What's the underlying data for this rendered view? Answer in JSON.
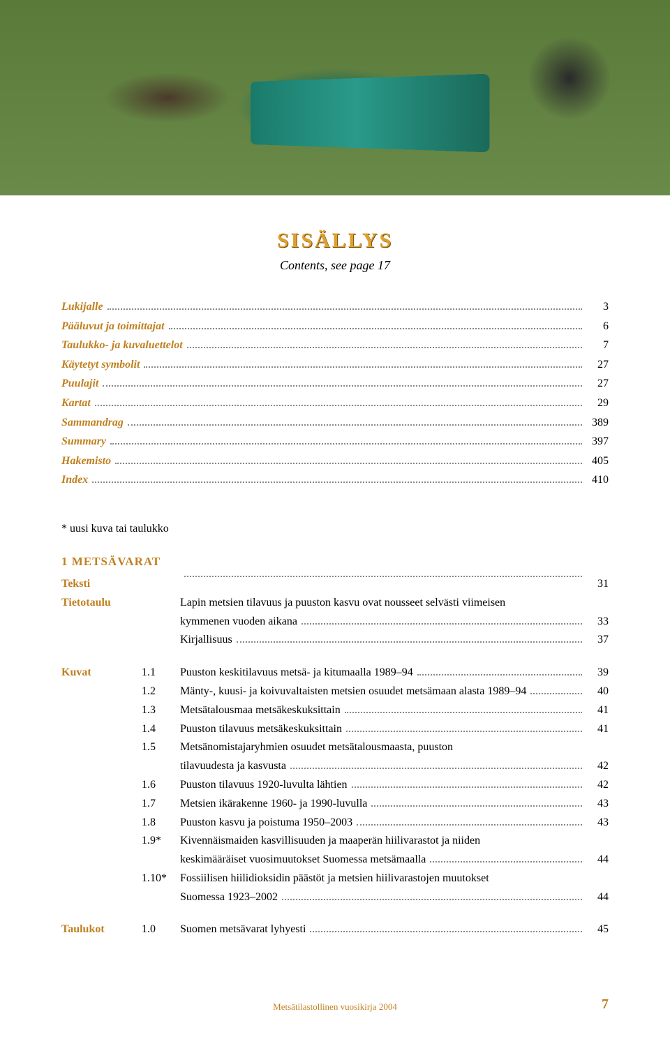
{
  "hero": {
    "alt": "forestry-machine-photo"
  },
  "title": "SISÄLLYS",
  "subtitle": "Contents, see page 17",
  "toc_top": [
    {
      "label": "Lukijalle",
      "page": "3"
    },
    {
      "label": "Pääluvut ja toimittajat",
      "page": "6"
    },
    {
      "label": "Taulukko- ja kuvaluettelot",
      "page": "7"
    },
    {
      "label": "Käytetyt symbolit",
      "page": "27"
    },
    {
      "label": "Puulajit",
      "page": "27"
    },
    {
      "label": "Kartat",
      "page": "29"
    },
    {
      "label": "Sammandrag",
      "page": "389"
    },
    {
      "label": "Summary",
      "page": "397"
    },
    {
      "label": "Hakemisto",
      "page": "405"
    },
    {
      "label": "Index",
      "page": "410"
    }
  ],
  "section_note": "* uusi kuva tai taulukko",
  "section_heading": "1 METSÄVARAT",
  "teksti": {
    "label": "Teksti",
    "page": "31"
  },
  "tietotaulu": {
    "label": "Tietotaulu",
    "lines": [
      {
        "text": "Lapin metsien tilavuus ja puuston kasvu ovat nousseet selvästi viimeisen",
        "page": ""
      },
      {
        "text": "kymmenen vuoden aikana",
        "page": "33"
      },
      {
        "text": "Kirjallisuus",
        "page": "37"
      }
    ]
  },
  "kuvat": {
    "label": "Kuvat",
    "items": [
      {
        "num": "1.1",
        "text": "Puuston keskitilavuus metsä- ja kitumaalla 1989–94",
        "page": "39"
      },
      {
        "num": "1.2",
        "text": "Mänty-, kuusi- ja koivuvaltaisten metsien osuudet metsämaan alasta 1989–94",
        "page": "40"
      },
      {
        "num": "1.3",
        "text": "Metsätalousmaa metsäkeskuksittain",
        "page": "41"
      },
      {
        "num": "1.4",
        "text": "Puuston tilavuus metsäkeskuksittain",
        "page": "41"
      },
      {
        "num": "1.5",
        "lines": [
          "Metsänomistajaryhmien osuudet metsätalousmaasta, puuston",
          "tilavuudesta ja kasvusta"
        ],
        "page": "42"
      },
      {
        "num": "1.6",
        "text": "Puuston tilavuus 1920-luvulta lähtien",
        "page": "42"
      },
      {
        "num": "1.7",
        "text": "Metsien ikärakenne 1960- ja 1990-luvulla",
        "page": "43"
      },
      {
        "num": "1.8",
        "text": "Puuston kasvu ja poistuma 1950–2003",
        "page": "43"
      },
      {
        "num": "1.9*",
        "lines": [
          "Kivennäismaiden kasvillisuuden ja maaperän hiilivarastot ja niiden",
          "keskimääräiset vuosimuutokset Suomessa metsämaalla"
        ],
        "page": "44"
      },
      {
        "num": "1.10*",
        "lines": [
          "Fossiilisen hiilidioksidin päästöt ja metsien hiilivarastojen muutokset",
          "Suomessa 1923–2002"
        ],
        "page": "44"
      }
    ]
  },
  "taulukot": {
    "label": "Taulukot",
    "items": [
      {
        "num": "1.0",
        "text": "Suomen metsävarat lyhyesti",
        "page": "45"
      }
    ]
  },
  "footer": {
    "text": "Metsätilastollinen vuosikirja 2004",
    "pagenum": "7"
  },
  "colors": {
    "accent": "#c08020",
    "title": "#e0a030",
    "text": "#000000",
    "dots": "#888888"
  }
}
